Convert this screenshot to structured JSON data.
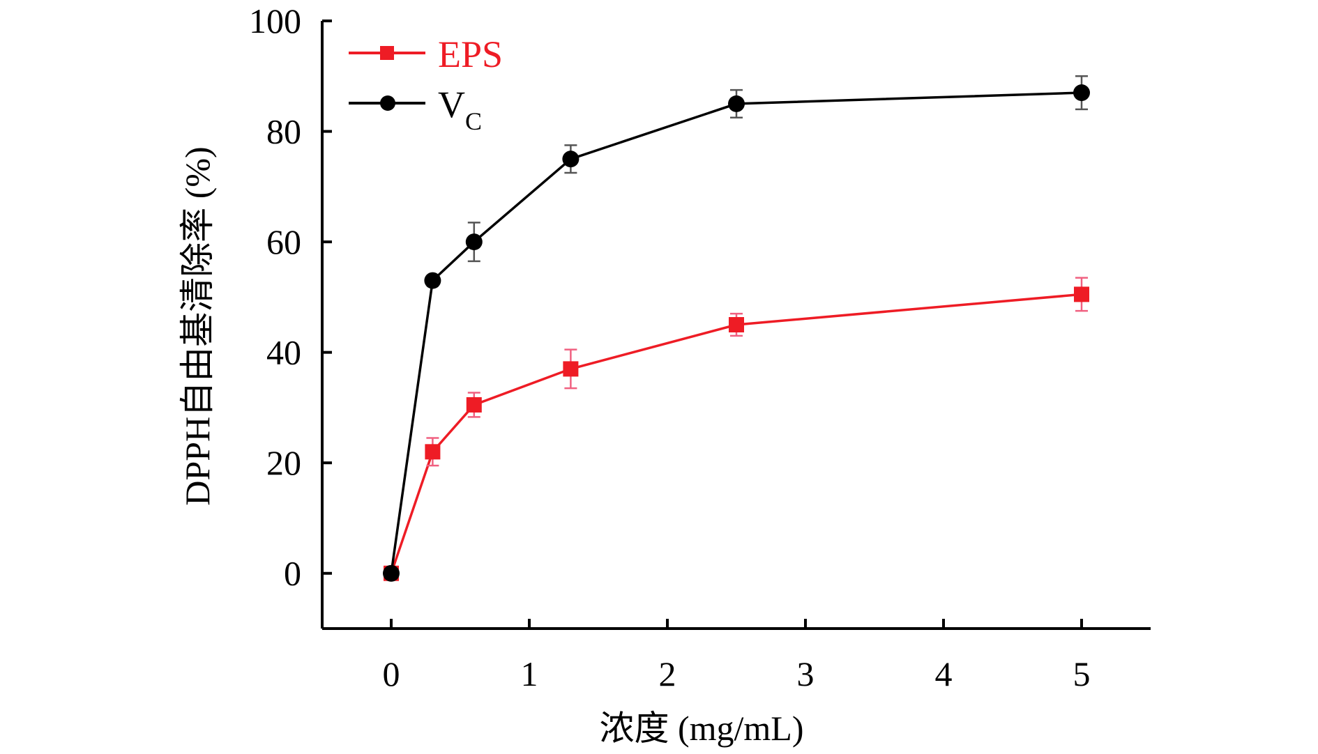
{
  "chart_data": {
    "type": "line",
    "title": "",
    "xlabel": "浓度 (mg/mL)",
    "ylabel": "DPPH自由基清除率 (%)",
    "xlim": [
      -0.5,
      5.5
    ],
    "ylim": [
      -10,
      100
    ],
    "xticks": [
      0,
      1,
      2,
      3,
      4,
      5
    ],
    "yticks": [
      0,
      20,
      40,
      60,
      80,
      100
    ],
    "grid": false,
    "legend_position": "top-left",
    "series": [
      {
        "name": "EPS",
        "color": "#ee1c25",
        "marker": "square",
        "x": [
          0,
          0.3,
          0.6,
          1.3,
          2.5,
          5
        ],
        "y": [
          0,
          22,
          30.5,
          37,
          45,
          50.5
        ],
        "error": [
          0,
          2.5,
          2.2,
          3.5,
          2,
          3
        ]
      },
      {
        "name": "V",
        "name_subscript": "C",
        "color": "#000000",
        "marker": "circle",
        "x": [
          0,
          0.3,
          0.6,
          1.3,
          2.5,
          5
        ],
        "y": [
          0,
          53,
          60,
          75,
          85,
          87
        ],
        "error": [
          0,
          0,
          3.5,
          2.5,
          2.5,
          3
        ]
      }
    ]
  }
}
